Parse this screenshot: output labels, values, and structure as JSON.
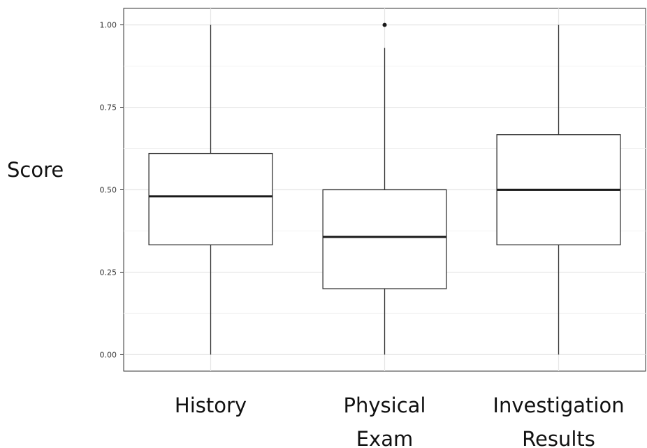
{
  "chart_data": {
    "type": "boxplot",
    "title": "",
    "xlabel": "",
    "ylabel": "Score",
    "ylim": [
      -0.05,
      1.05
    ],
    "yticks": [
      0.0,
      0.25,
      0.5,
      0.75,
      1.0
    ],
    "ytick_labels": [
      "0.00",
      "0.25",
      "0.50",
      "0.75",
      "1.00"
    ],
    "grid": true,
    "categories": [
      {
        "label_lines": [
          "History"
        ]
      },
      {
        "label_lines": [
          "Physical",
          "Exam"
        ]
      },
      {
        "label_lines": [
          "Investigation",
          "Results"
        ]
      }
    ],
    "boxes": [
      {
        "min": 0.0,
        "q1": 0.333,
        "median": 0.48,
        "q3": 0.61,
        "max": 1.0,
        "outliers": []
      },
      {
        "min": 0.0,
        "q1": 0.2,
        "median": 0.357,
        "q3": 0.5,
        "max": 0.93,
        "outliers": [
          1.0
        ]
      },
      {
        "min": 0.0,
        "q1": 0.333,
        "median": 0.5,
        "q3": 0.667,
        "max": 1.0,
        "outliers": []
      }
    ]
  }
}
